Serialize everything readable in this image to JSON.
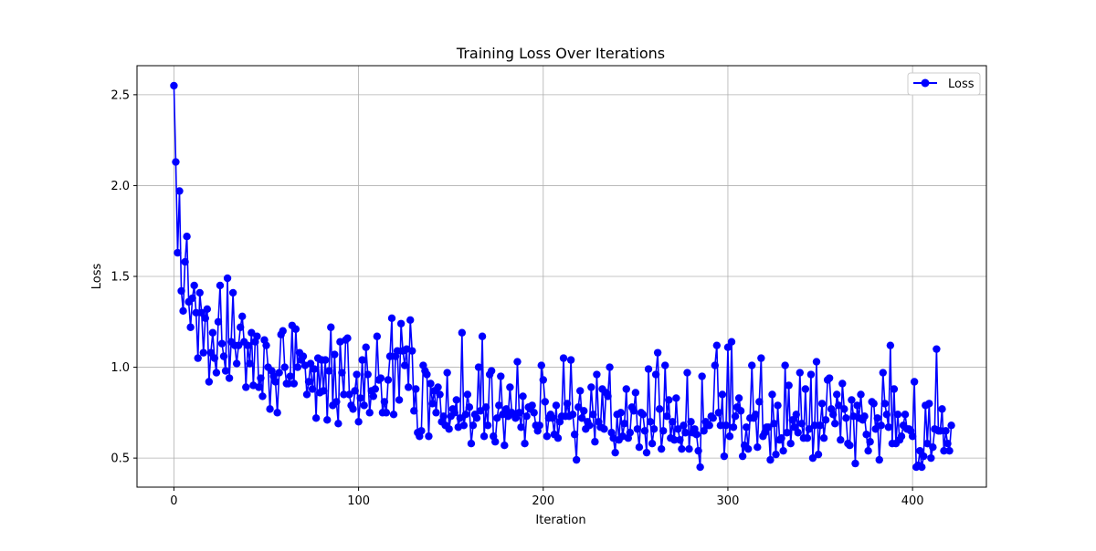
{
  "chart_data": {
    "type": "line",
    "title": "Training Loss Over Iterations",
    "xlabel": "Iteration",
    "ylabel": "Loss",
    "xlim": [
      -20,
      440
    ],
    "ylim": [
      0.34,
      2.66
    ],
    "x_ticks": [
      0,
      100,
      200,
      300,
      400
    ],
    "x_tick_labels": [
      "0",
      "100",
      "200",
      "300",
      "400"
    ],
    "y_ticks": [
      0.5,
      1.0,
      1.5,
      2.0,
      2.5
    ],
    "y_tick_labels": [
      "0.5",
      "1.0",
      "1.5",
      "2.0",
      "2.5"
    ],
    "grid": true,
    "legend_position": "top-right",
    "colors": {
      "series": "#0000ff",
      "grid": "#b0b0b0",
      "axes": "#000000"
    },
    "series": [
      {
        "name": "Loss",
        "marker": "circle",
        "x_start": 0,
        "x_step": 1,
        "values": [
          2.55,
          2.13,
          1.63,
          1.97,
          1.42,
          1.31,
          1.58,
          1.72,
          1.36,
          1.22,
          1.38,
          1.45,
          1.3,
          1.05,
          1.41,
          1.3,
          1.08,
          1.27,
          1.32,
          0.92,
          1.08,
          1.19,
          1.05,
          0.97,
          1.25,
          1.45,
          1.13,
          1.06,
          0.98,
          1.49,
          0.94,
          1.14,
          1.41,
          1.12,
          1.02,
          1.12,
          1.22,
          1.28,
          1.14,
          0.89,
          1.12,
          1.02,
          1.19,
          0.9,
          1.14,
          1.17,
          0.89,
          0.94,
          0.84,
          1.15,
          1.12,
          1.0,
          0.77,
          0.98,
          0.95,
          0.92,
          0.75,
          0.97,
          1.18,
          1.2,
          1.0,
          0.91,
          0.91,
          0.95,
          1.23,
          0.91,
          1.21,
          1.0,
          1.08,
          1.04,
          1.06,
          1.01,
          0.85,
          0.92,
          1.02,
          0.88,
          0.99,
          0.72,
          1.05,
          0.86,
          1.04,
          0.87,
          1.04,
          0.71,
          0.98,
          1.22,
          0.79,
          1.07,
          0.81,
          0.69,
          1.14,
          0.97,
          0.85,
          1.15,
          1.16,
          0.85,
          0.79,
          0.77,
          0.87,
          0.96,
          0.7,
          0.83,
          1.04,
          0.79,
          1.11,
          0.96,
          0.75,
          0.87,
          0.84,
          0.88,
          1.17,
          0.93,
          0.94,
          0.75,
          0.81,
          0.75,
          0.93,
          1.06,
          1.27,
          0.74,
          1.06,
          1.09,
          0.82,
          1.24,
          1.09,
          1.01,
          1.1,
          0.89,
          1.26,
          1.09,
          0.76,
          0.88,
          0.64,
          0.62,
          0.65,
          1.01,
          0.98,
          0.96,
          0.62,
          0.91,
          0.8,
          0.87,
          0.75,
          0.89,
          0.85,
          0.7,
          0.73,
          0.68,
          0.97,
          0.66,
          0.73,
          0.77,
          0.75,
          0.82,
          0.67,
          0.72,
          1.19,
          0.68,
          0.74,
          0.85,
          0.78,
          0.58,
          0.68,
          0.74,
          0.72,
          1.0,
          0.76,
          1.17,
          0.62,
          0.78,
          0.68,
          0.96,
          0.98,
          0.62,
          0.59,
          0.72,
          0.79,
          0.95,
          0.74,
          0.57,
          0.77,
          0.73,
          0.89,
          0.75,
          0.74,
          0.72,
          1.03,
          0.75,
          0.67,
          0.84,
          0.58,
          0.73,
          0.78,
          0.77,
          0.79,
          0.75,
          0.68,
          0.65,
          0.68,
          1.01,
          0.93,
          0.81,
          0.62,
          0.72,
          0.74,
          0.72,
          0.63,
          0.79,
          0.61,
          0.7,
          0.73,
          1.05,
          0.73,
          0.8,
          0.73,
          1.04,
          0.74,
          0.63,
          0.49,
          0.78,
          0.87,
          0.72,
          0.76,
          0.66,
          0.7,
          0.68,
          0.89,
          0.74,
          0.59,
          0.96,
          0.7,
          0.67,
          0.88,
          0.66,
          0.86,
          0.84,
          1.0,
          0.64,
          0.61,
          0.53,
          0.74,
          0.6,
          0.75,
          0.62,
          0.69,
          0.88,
          0.61,
          0.64,
          0.78,
          0.76,
          0.86,
          0.66,
          0.56,
          0.75,
          0.74,
          0.65,
          0.53,
          0.99,
          0.7,
          0.58,
          0.66,
          0.96,
          1.08,
          0.77,
          0.55,
          0.65,
          1.01,
          0.73,
          0.82,
          0.61,
          0.7,
          0.6,
          0.83,
          0.66,
          0.6,
          0.55,
          0.68,
          0.64,
          0.97,
          0.55,
          0.7,
          0.64,
          0.66,
          0.63,
          0.54,
          0.45,
          0.95,
          0.65,
          0.7,
          0.68,
          0.68,
          0.73,
          0.72,
          1.01,
          1.12,
          0.75,
          0.68,
          0.85,
          0.51,
          0.68,
          1.11,
          0.62,
          1.14,
          0.67,
          0.73,
          0.78,
          0.83,
          0.76,
          0.51,
          0.57,
          0.67,
          0.55,
          0.72,
          1.01,
          0.72,
          0.74,
          0.56,
          0.81,
          1.05,
          0.62,
          0.64,
          0.67,
          0.67,
          0.49,
          0.85,
          0.69,
          0.52,
          0.79,
          0.6,
          0.61,
          0.54,
          1.01,
          0.64,
          0.9,
          0.58,
          0.71,
          0.67,
          0.74,
          0.64,
          0.97,
          0.69,
          0.61,
          0.88,
          0.61,
          0.66,
          0.96,
          0.5,
          0.68,
          1.03,
          0.52,
          0.68,
          0.8,
          0.61,
          0.71,
          0.93,
          0.94,
          0.77,
          0.74,
          0.69,
          0.85,
          0.79,
          0.6,
          0.91,
          0.77,
          0.72,
          0.58,
          0.57,
          0.82,
          0.73,
          0.47,
          0.79,
          0.72,
          0.85,
          0.71,
          0.73,
          0.63,
          0.54,
          0.59,
          0.81,
          0.8,
          0.66,
          0.72,
          0.49,
          0.68,
          0.97,
          0.8,
          0.74,
          0.67,
          1.12,
          0.58,
          0.88,
          0.58,
          0.74,
          0.6,
          0.62,
          0.68,
          0.74,
          0.66,
          0.66,
          0.65,
          0.62,
          0.92,
          0.45,
          0.46,
          0.54,
          0.45,
          0.51,
          0.79,
          0.58,
          0.8,
          0.5,
          0.56,
          0.66,
          1.1,
          0.65,
          0.65,
          0.77,
          0.54,
          0.65,
          0.58,
          0.54,
          0.68
        ]
      }
    ]
  }
}
